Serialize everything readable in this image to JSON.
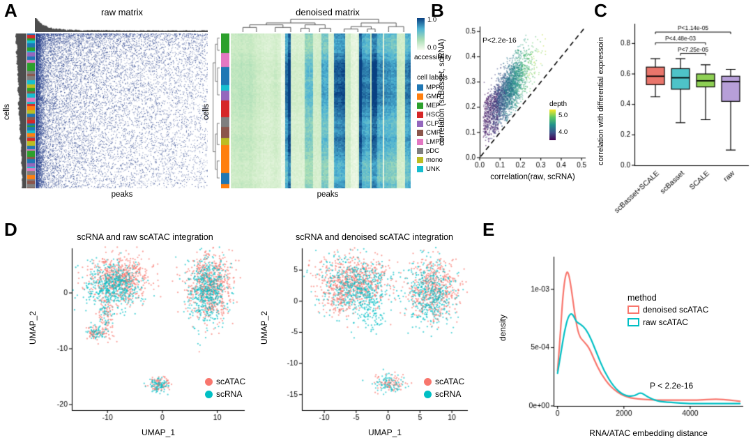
{
  "panels": {
    "a": {
      "letter": "A",
      "raw_title": "raw matrix",
      "denoised_title": "denoised matrix",
      "cells_label": "cells",
      "peaks_label": "peaks",
      "colorbar": {
        "title": "accessibility",
        "tick_top": "1.0",
        "tick_bottom": "0.0",
        "gradient_top_to_bottom": [
          "#084081",
          "#4eb3d3",
          "#a8ddb5",
          "#f7fcf0"
        ]
      },
      "legend": {
        "title": "cell labels",
        "items": [
          {
            "label": "MPP",
            "color": "#1f77b4"
          },
          {
            "label": "GMP",
            "color": "#ff7f0e"
          },
          {
            "label": "MEP",
            "color": "#2ca02c"
          },
          {
            "label": "HSC",
            "color": "#d62728"
          },
          {
            "label": "CLP",
            "color": "#9467bd"
          },
          {
            "label": "CMP",
            "color": "#8c564b"
          },
          {
            "label": "LMPP",
            "color": "#e377c2"
          },
          {
            "label": "pDC",
            "color": "#7f7f7f"
          },
          {
            "label": "mono",
            "color": "#bcbd22"
          },
          {
            "label": "UNK",
            "color": "#17becf"
          }
        ]
      }
    },
    "b": {
      "letter": "B",
      "ylabel": "correlation (scBasset, scRNA)",
      "xlabel": "correlation(raw, scRNA)",
      "annotation": "P<2.2e-16",
      "depth_legend": {
        "title": "depth",
        "tick_top": "5.0",
        "tick_bottom": "4.0"
      }
    },
    "c": {
      "letter": "C",
      "ylabel": "correlation with differential expressoin"
    },
    "d": {
      "letter": "D",
      "left_title": "scRNA and raw scATAC integration",
      "right_title": "scRNA and denoised scATAC integration",
      "xlabel": "UMAP_1",
      "ylabel": "UMAP_2",
      "legend_items": [
        {
          "label": "scATAC",
          "color": "#F8766D"
        },
        {
          "label": "scRNA",
          "color": "#00BFC4"
        }
      ]
    },
    "e": {
      "letter": "E",
      "ylabel": "density",
      "xlabel": "RNA/ATAC embedding distance",
      "annotation": "P < 2.2e-16",
      "legend": {
        "title": "method",
        "items": [
          {
            "label": "denoised scATAC",
            "color": "#F8766D"
          },
          {
            "label": "raw scATAC",
            "color": "#00BFC4"
          }
        ]
      }
    }
  },
  "chart_data": [
    {
      "id": "a_raw",
      "type": "heatmap",
      "title": "raw matrix",
      "xlabel": "peaks",
      "ylabel": "cells",
      "style": "sparse binary accessibility dots; density highest in left-most peak columns and top rows; gray marginal density silhouettes on top and left; unordered colored cell-label strip on left",
      "dot_color": "#27408b",
      "n_dots": 9000
    },
    {
      "id": "a_denoised",
      "type": "heatmap",
      "title": "denoised matrix",
      "xlabel": "peaks",
      "ylabel": "cells",
      "value_range": [
        0,
        1
      ],
      "palette_stops": [
        [
          0,
          "#f7fcf0"
        ],
        [
          0.3,
          "#ccebc5"
        ],
        [
          0.5,
          "#a8ddb5"
        ],
        [
          0.72,
          "#4eb3d3"
        ],
        [
          1,
          "#084081"
        ]
      ],
      "structure": "mostly low accessibility (pale green) with dark-blue high-accessibility column bands; rows and columns ordered by hierarchical clustering with dendrograms; clustered cell-label strip on left",
      "row_dendrogram": true,
      "col_dendrogram": true
    },
    {
      "id": "b_scatter",
      "type": "scatter",
      "xlabel": "correlation(raw, scRNA)",
      "ylabel": "correlation (scBasset, scRNA)",
      "annotation": "P<2.2e-16",
      "xlim": [
        0,
        0.52
      ],
      "ylim": [
        0,
        0.52
      ],
      "xticks": [
        {
          "v": 0,
          "l": "0.0"
        },
        {
          "v": 0.1,
          "l": "0.1"
        },
        {
          "v": 0.2,
          "l": "0.2"
        },
        {
          "v": 0.3,
          "l": "0.3"
        },
        {
          "v": 0.4,
          "l": "0.4"
        },
        {
          "v": 0.5,
          "l": "0.5"
        }
      ],
      "yticks": [
        {
          "v": 0,
          "l": "0.0"
        },
        {
          "v": 0.1,
          "l": "0.1"
        },
        {
          "v": 0.2,
          "l": "0.2"
        },
        {
          "v": 0.3,
          "l": "0.3"
        },
        {
          "v": 0.4,
          "l": "0.4"
        },
        {
          "v": 0.5,
          "l": "0.5"
        }
      ],
      "diagonal_dashed": true,
      "n_points": 2600,
      "cloud": {
        "x_mean": 0.13,
        "x_sd": 0.055,
        "y_offset": 0.13,
        "y_sd": 0.05
      },
      "color_by": "depth",
      "viridis_stops": [
        [
          0,
          "#440154"
        ],
        [
          0.25,
          "#3b528b"
        ],
        [
          0.5,
          "#21918c"
        ],
        [
          0.75,
          "#5ec962"
        ],
        [
          1,
          "#fde725"
        ]
      ]
    },
    {
      "id": "c_box",
      "type": "box",
      "ylabel": "correlation with differential expressoin",
      "ylim": [
        0,
        0.93
      ],
      "yticks": [
        {
          "v": 0,
          "l": "0.0"
        },
        {
          "v": 0.2,
          "l": "0.2"
        },
        {
          "v": 0.4,
          "l": "0.4"
        },
        {
          "v": 0.6,
          "l": "0.6"
        },
        {
          "v": 0.8,
          "l": "0.8"
        }
      ],
      "categories": [
        "scBasset+SCALE",
        "scBasset",
        "SCALE",
        "raw"
      ],
      "colors": [
        "#e9756b",
        "#4ec3c8",
        "#8ed054",
        "#b79fd8"
      ],
      "boxes": [
        {
          "whislo": 0.45,
          "q1": 0.53,
          "med": 0.585,
          "q3": 0.645,
          "whishi": 0.7
        },
        {
          "whislo": 0.28,
          "q1": 0.5,
          "med": 0.575,
          "q3": 0.635,
          "whishi": 0.7
        },
        {
          "whislo": 0.3,
          "q1": 0.515,
          "med": 0.555,
          "q3": 0.6,
          "whishi": 0.66
        },
        {
          "whislo": 0.1,
          "q1": 0.42,
          "med": 0.55,
          "q3": 0.585,
          "whishi": 0.63
        }
      ],
      "significance": [
        {
          "label": "P<7.25e-05",
          "i": 1,
          "j": 2,
          "y": 0.735
        },
        {
          "label": "P<4.48e-03",
          "i": 0,
          "j": 2,
          "y": 0.805
        },
        {
          "label": "P<1.14e-05",
          "i": 0,
          "j": 3,
          "y": 0.875
        }
      ]
    },
    {
      "id": "d_raw",
      "type": "scatter",
      "title": "scRNA and raw scATAC integration",
      "xlabel": "UMAP_1",
      "ylabel": "UMAP_2",
      "xlim": [
        -16.5,
        15
      ],
      "ylim": [
        -21,
        8
      ],
      "xticks": [
        {
          "v": -10,
          "l": "-10"
        },
        {
          "v": 0,
          "l": "0"
        },
        {
          "v": 10,
          "l": "10"
        }
      ],
      "yticks": [
        {
          "v": 0,
          "l": "0"
        },
        {
          "v": -10,
          "l": "-10"
        },
        {
          "v": -20,
          "l": "-20"
        }
      ],
      "groups": [
        {
          "name": "scATAC",
          "color": "#F8766D"
        },
        {
          "name": "scRNA",
          "color": "#00BFC4"
        }
      ],
      "clusters": [
        {
          "group": "scATAC",
          "cx": -7.6,
          "cy": 2.6,
          "sx": 2.6,
          "sy": 2.0,
          "n": 620
        },
        {
          "group": "scRNA",
          "cx": -9.0,
          "cy": 1.4,
          "sx": 2.4,
          "sy": 2.0,
          "n": 520
        },
        {
          "group": "scATAC",
          "cx": -10.2,
          "cy": -4.0,
          "sx": 0.9,
          "sy": 2.0,
          "n": 90
        },
        {
          "group": "scRNA",
          "cx": -10.4,
          "cy": -4.2,
          "sx": 0.7,
          "sy": 1.6,
          "n": 40
        },
        {
          "group": "scATAC",
          "cx": -12.3,
          "cy": -7.2,
          "sx": 0.8,
          "sy": 0.6,
          "n": 60
        },
        {
          "group": "scRNA",
          "cx": -12.1,
          "cy": -7.0,
          "sx": 0.8,
          "sy": 0.6,
          "n": 50
        },
        {
          "group": "scATAC",
          "cx": 8.6,
          "cy": 1.2,
          "sx": 1.9,
          "sy": 3.0,
          "n": 650
        },
        {
          "group": "scRNA",
          "cx": 8.2,
          "cy": 0.2,
          "sx": 1.8,
          "sy": 3.0,
          "n": 520
        },
        {
          "group": "scATAC",
          "cx": -0.6,
          "cy": -16.3,
          "sx": 1.0,
          "sy": 0.7,
          "n": 90
        },
        {
          "group": "scRNA",
          "cx": -0.6,
          "cy": -16.5,
          "sx": 1.0,
          "sy": 0.7,
          "n": 80
        }
      ]
    },
    {
      "id": "d_denoised",
      "type": "scatter",
      "title": "scRNA and denoised scATAC integration",
      "xlabel": "UMAP_1",
      "ylabel": "UMAP_2",
      "xlim": [
        -13.5,
        12.5
      ],
      "ylim": [
        -17.5,
        8.5
      ],
      "xticks": [
        {
          "v": -10,
          "l": "-10"
        },
        {
          "v": -5,
          "l": "-5"
        },
        {
          "v": 0,
          "l": "0"
        },
        {
          "v": 5,
          "l": "5"
        },
        {
          "v": 10,
          "l": "10"
        }
      ],
      "yticks": [
        {
          "v": 5,
          "l": "5"
        },
        {
          "v": 0,
          "l": "0"
        },
        {
          "v": -5,
          "l": "-5"
        },
        {
          "v": -10,
          "l": "-10"
        },
        {
          "v": -15,
          "l": "-15"
        }
      ],
      "groups": [
        {
          "name": "scATAC",
          "color": "#F8766D"
        },
        {
          "name": "scRNA",
          "color": "#00BFC4"
        }
      ],
      "clusters": [
        {
          "group": "scATAC",
          "cx": -5.5,
          "cy": 3.2,
          "sx": 2.8,
          "sy": 2.2,
          "n": 640
        },
        {
          "group": "scRNA",
          "cx": -4.8,
          "cy": 2.2,
          "sx": 2.8,
          "sy": 2.4,
          "n": 540
        },
        {
          "group": "scATAC",
          "cx": -7.5,
          "cy": -0.5,
          "sx": 1.2,
          "sy": 1.2,
          "n": 80
        },
        {
          "group": "scRNA",
          "cx": -2.5,
          "cy": -2.0,
          "sx": 1.0,
          "sy": 1.5,
          "n": 70
        },
        {
          "group": "scATAC",
          "cx": 7.0,
          "cy": 2.0,
          "sx": 1.9,
          "sy": 2.4,
          "n": 500
        },
        {
          "group": "scRNA",
          "cx": 6.6,
          "cy": 1.2,
          "sx": 1.9,
          "sy": 2.6,
          "n": 430
        },
        {
          "group": "scATAC",
          "cx": 0.2,
          "cy": -13.0,
          "sx": 1.2,
          "sy": 0.8,
          "n": 90
        },
        {
          "group": "scRNA",
          "cx": 0.2,
          "cy": -13.2,
          "sx": 1.2,
          "sy": 0.8,
          "n": 80
        }
      ]
    },
    {
      "id": "e_density",
      "type": "line",
      "xlabel": "RNA/ATAC embedding distance",
      "ylabel": "density",
      "annotation": "P < 2.2e-16",
      "xlim": [
        -120,
        5600
      ],
      "ylim": [
        0,
        0.00128
      ],
      "xticks": [
        {
          "v": 0,
          "l": "0"
        },
        {
          "v": 2000,
          "l": "2000"
        },
        {
          "v": 4000,
          "l": "4000"
        }
      ],
      "yticks": [
        {
          "v": 0,
          "l": "0e+00"
        },
        {
          "v": 0.0005,
          "l": "5e-04"
        },
        {
          "v": 0.001,
          "l": "1e-03"
        }
      ],
      "legend_position": "right",
      "series": [
        {
          "name": "denoised scATAC",
          "color": "#F8766D",
          "x": [
            0,
            80,
            160,
            240,
            320,
            420,
            520,
            640,
            800,
            950,
            1100,
            1300,
            1600,
            2000,
            2400,
            3000,
            3600,
            4200,
            4800,
            5200,
            5500
          ],
          "y": [
            0.0003,
            0.0006,
            0.00095,
            0.00113,
            0.00116,
            0.001,
            0.00078,
            0.0006,
            0.00055,
            0.0005,
            0.0004,
            0.00028,
            0.00016,
            8e-05,
            6e-05,
            5e-05,
            5e-05,
            5e-05,
            6e-05,
            5e-05,
            4e-05
          ]
        },
        {
          "name": "raw scATAC",
          "color": "#00BFC4",
          "x": [
            0,
            100,
            200,
            320,
            440,
            560,
            700,
            850,
            1000,
            1200,
            1400,
            1700,
            2000,
            2300,
            2500,
            2700,
            3000,
            3400,
            4000,
            4600,
            5200,
            5500
          ],
          "y": [
            0.00028,
            0.00045,
            0.00063,
            0.00077,
            0.0008,
            0.00072,
            0.0007,
            0.00066,
            0.00058,
            0.00044,
            0.0003,
            0.00016,
            9e-05,
            8e-05,
            0.00012,
            8e-05,
            4e-05,
            3e-05,
            2e-05,
            2e-05,
            2e-05,
            2e-05
          ]
        }
      ]
    }
  ]
}
